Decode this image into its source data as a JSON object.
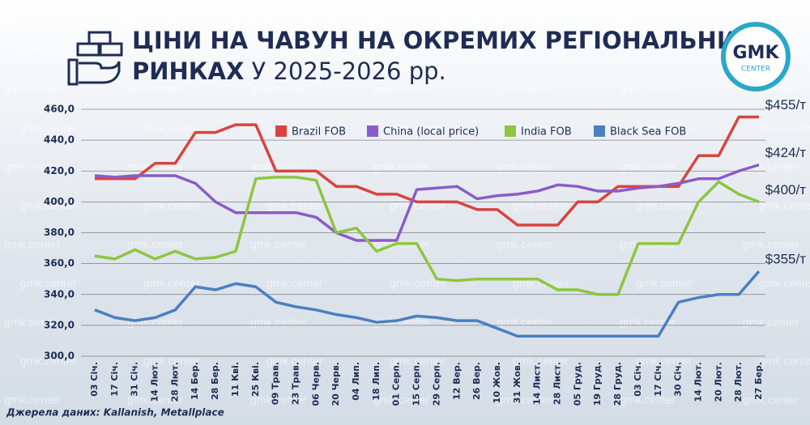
{
  "header": {
    "title_line1": "ЦІНИ НА ЧАВУН НА ОКРЕМИХ РЕГІОНАЛЬНИХ",
    "title_line2_bold": "РИНКАХ",
    "title_line2": "У 2025-2026 рр.",
    "logo_main": "GMK",
    "logo_sub": "CENTER",
    "watermark": "gmk.center"
  },
  "source": "Джерела даних: Kallanish, Metallplace",
  "chart_data": {
    "type": "line",
    "categories": [
      "03 Січ.",
      "17 Січ.",
      "31 Січ.",
      "14 Лют.",
      "28 Лют.",
      "14 Бер.",
      "28 Бер.",
      "11 Кві.",
      "25 Кві.",
      "09 Трав.",
      "23 Трав.",
      "06 Черв.",
      "20 Черв.",
      "04 Лип.",
      "18 Лип.",
      "01 Серп.",
      "15 Серп.",
      "29 Серп.",
      "12 Вер.",
      "26 Вер.",
      "10 Жов.",
      "31 Жов.",
      "14 Лист.",
      "28 Лист.",
      "05 Груд.",
      "19 Груд.",
      "28 Груд.",
      "03 Січ.",
      "17 Січ.",
      "30 Січ.",
      "14 Лют.",
      "20 Лют.",
      "28 Лют.",
      "27 Бер."
    ],
    "series": [
      {
        "name": "Brazil FOB",
        "color": "#d9443f",
        "end_label": "$455/т",
        "values": [
          415,
          415,
          415,
          425,
          425,
          445,
          445,
          450,
          450,
          420,
          420,
          420,
          410,
          410,
          405,
          405,
          400,
          400,
          400,
          395,
          395,
          385,
          385,
          385,
          400,
          400,
          410,
          410,
          410,
          410,
          430,
          430,
          455,
          455
        ]
      },
      {
        "name": "China (local price)",
        "color": "#8a5cc7",
        "end_label": "$424/т",
        "values": [
          417,
          416,
          417,
          417,
          417,
          412,
          400,
          393,
          393,
          393,
          393,
          390,
          380,
          375,
          375,
          375,
          408,
          409,
          410,
          402,
          404,
          405,
          407,
          411,
          410,
          407,
          407,
          409,
          410,
          412,
          415,
          415,
          420,
          424
        ]
      },
      {
        "name": "India FOB",
        "color": "#8dc63f",
        "end_label": "$400/т",
        "values": [
          365,
          363,
          369,
          363,
          368,
          363,
          364,
          368,
          415,
          416,
          416,
          414,
          380,
          383,
          368,
          373,
          373,
          350,
          349,
          350,
          350,
          350,
          350,
          343,
          343,
          340,
          340,
          373,
          373,
          373,
          400,
          413,
          405,
          400
        ]
      },
      {
        "name": "Black Sea FOB",
        "color": "#4a7fc1",
        "end_label": "$355/т",
        "values": [
          330,
          325,
          323,
          325,
          330,
          345,
          343,
          347,
          345,
          335,
          332,
          330,
          327,
          325,
          322,
          323,
          326,
          325,
          323,
          323,
          318,
          313,
          313,
          313,
          313,
          313,
          313,
          313,
          313,
          335,
          338,
          340,
          340,
          355
        ]
      }
    ],
    "ylim": [
      300,
      460
    ],
    "yticks": [
      {
        "value": 300,
        "label": "300,0"
      },
      {
        "value": 320,
        "label": "320,0"
      },
      {
        "value": 340,
        "label": "340,0"
      },
      {
        "value": 360,
        "label": "360,0"
      },
      {
        "value": 380,
        "label": "380,0"
      },
      {
        "value": 400,
        "label": "400,0"
      },
      {
        "value": 420,
        "label": "420,0"
      },
      {
        "value": 440,
        "label": "440,0"
      },
      {
        "value": 460,
        "label": "460,0"
      }
    ],
    "grid": true
  }
}
